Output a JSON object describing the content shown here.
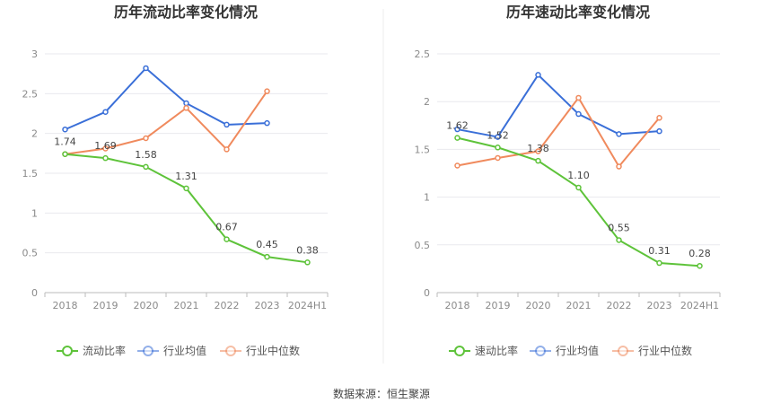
{
  "source": "数据来源：恒生聚源",
  "colors": {
    "green": "#5ec33a",
    "blue": "#3a6fd8",
    "orange": "#f08a5d",
    "grid": "#e9e9ee",
    "axis": "#bbbbbb"
  },
  "chart_data": [
    {
      "type": "line",
      "title": "历年流动比率变化情况",
      "categories": [
        "2018",
        "2019",
        "2020",
        "2021",
        "2022",
        "2023",
        "2024H1"
      ],
      "ylim": [
        0,
        3
      ],
      "yticks": [
        "0",
        "0.5",
        "1",
        "1.5",
        "2",
        "2.5",
        "3"
      ],
      "grid": true,
      "legend_position": "bottom",
      "series": [
        {
          "name": "流动比率",
          "color": "#5ec33a",
          "labeled": true,
          "values": [
            1.74,
            1.69,
            1.58,
            1.31,
            0.67,
            0.45,
            0.38
          ],
          "labels": [
            "1.74",
            "1.69",
            "1.58",
            "1.31",
            "0.67",
            "0.45",
            "0.38"
          ]
        },
        {
          "name": "行业均值",
          "color": "#3a6fd8",
          "labeled": false,
          "values": [
            2.05,
            2.27,
            2.82,
            2.38,
            2.11,
            2.13,
            null
          ]
        },
        {
          "name": "行业中位数",
          "color": "#f08a5d",
          "labeled": false,
          "values": [
            1.74,
            1.81,
            1.94,
            2.32,
            1.8,
            2.53,
            null
          ]
        }
      ]
    },
    {
      "type": "line",
      "title": "历年速动比率变化情况",
      "categories": [
        "2018",
        "2019",
        "2020",
        "2021",
        "2022",
        "2023",
        "2024H1"
      ],
      "ylim": [
        0,
        2.5
      ],
      "yticks": [
        "0",
        "0.5",
        "1",
        "1.5",
        "2",
        "2.5"
      ],
      "grid": true,
      "legend_position": "bottom",
      "series": [
        {
          "name": "速动比率",
          "color": "#5ec33a",
          "labeled": true,
          "values": [
            1.62,
            1.52,
            1.38,
            1.1,
            0.55,
            0.31,
            0.28
          ],
          "labels": [
            "1.62",
            "1.52",
            "1.38",
            "1.10",
            "0.55",
            "0.31",
            "0.28"
          ]
        },
        {
          "name": "行业均值",
          "color": "#3a6fd8",
          "labeled": false,
          "values": [
            1.71,
            1.63,
            2.28,
            1.87,
            1.66,
            1.69,
            null
          ]
        },
        {
          "name": "行业中位数",
          "color": "#f08a5d",
          "labeled": false,
          "values": [
            1.33,
            1.41,
            1.48,
            2.04,
            1.32,
            1.83,
            null
          ]
        }
      ]
    }
  ]
}
